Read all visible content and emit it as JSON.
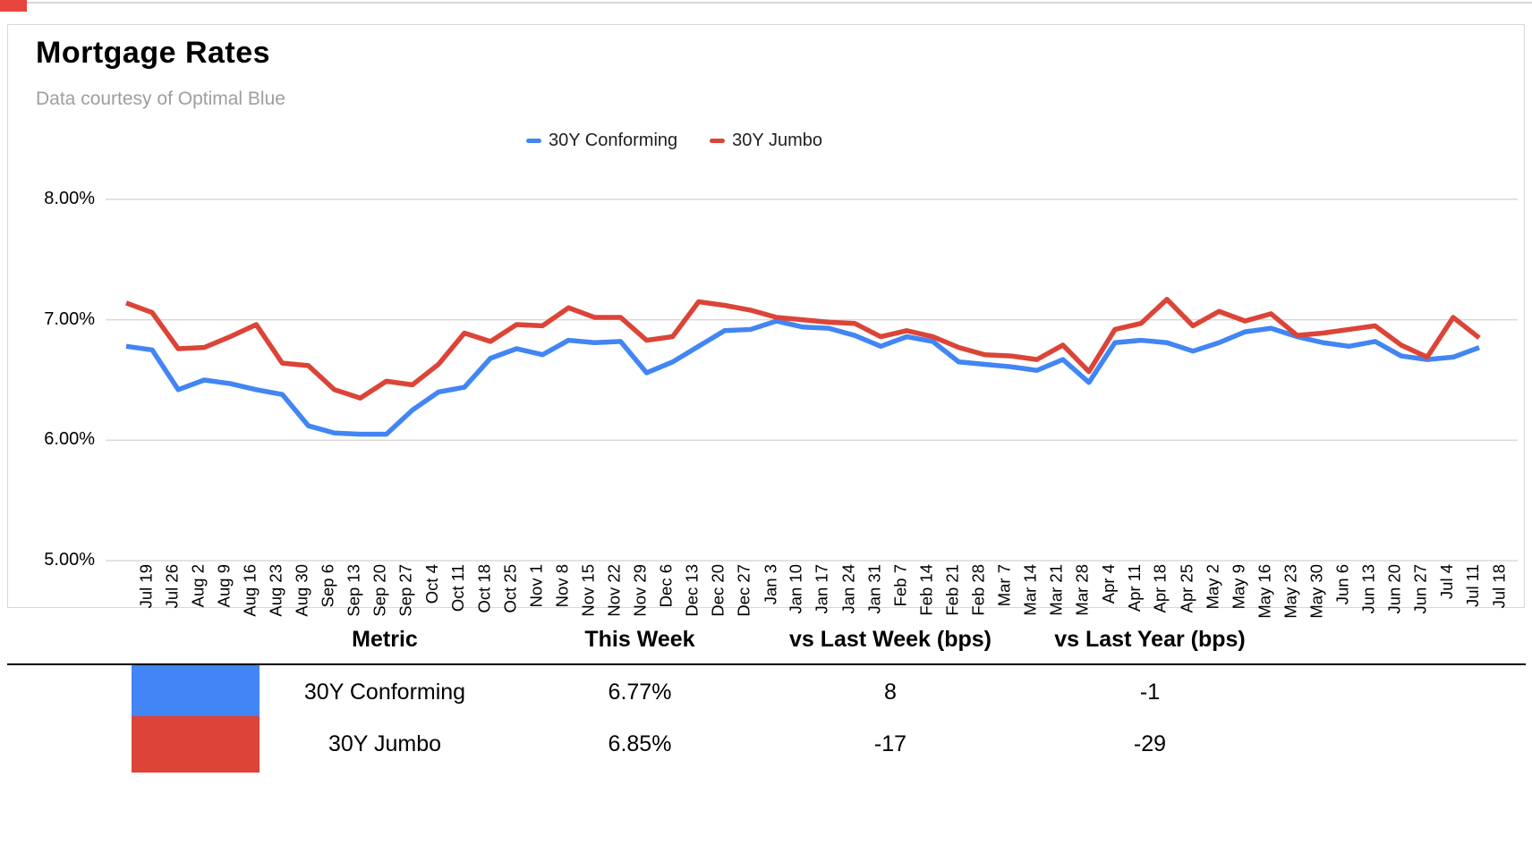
{
  "page": {
    "title": "Mortgage Rates",
    "subtitle": "Data courtesy of Optimal Blue"
  },
  "legend": [
    {
      "label": "30Y Conforming",
      "color": "#4285f4"
    },
    {
      "label": "30Y Jumbo",
      "color": "#db4437"
    }
  ],
  "chart_data": {
    "type": "line",
    "title": "Mortgage Rates",
    "subtitle": "Data courtesy of Optimal Blue",
    "x": [
      "Jul 19",
      "Jul 26",
      "Aug 2",
      "Aug 9",
      "Aug 16",
      "Aug 23",
      "Aug 30",
      "Sep 6",
      "Sep 13",
      "Sep 20",
      "Sep 27",
      "Oct 4",
      "Oct 11",
      "Oct 18",
      "Oct 25",
      "Nov 1",
      "Nov 8",
      "Nov 15",
      "Nov 22",
      "Nov 29",
      "Dec 6",
      "Dec 13",
      "Dec 20",
      "Dec 27",
      "Jan 3",
      "Jan 10",
      "Jan 17",
      "Jan 24",
      "Jan 31",
      "Feb 7",
      "Feb 14",
      "Feb 21",
      "Feb 28",
      "Mar 7",
      "Mar 14",
      "Mar 21",
      "Mar 28",
      "Apr 4",
      "Apr 11",
      "Apr 18",
      "Apr 25",
      "May 2",
      "May 9",
      "May 16",
      "May 23",
      "May 30",
      "Jun 6",
      "Jun 13",
      "Jun 20",
      "Jun 27",
      "Jul 4",
      "Jul 11",
      "Jul 18"
    ],
    "series": [
      {
        "name": "30Y Conforming",
        "color": "#4285f4",
        "values": [
          6.78,
          6.75,
          6.42,
          6.5,
          6.47,
          6.42,
          6.38,
          6.12,
          6.06,
          6.05,
          6.05,
          6.25,
          6.4,
          6.44,
          6.68,
          6.76,
          6.71,
          6.83,
          6.81,
          6.82,
          6.56,
          6.65,
          6.78,
          6.91,
          6.92,
          6.99,
          6.94,
          6.93,
          6.87,
          6.78,
          6.86,
          6.82,
          6.65,
          6.63,
          6.61,
          6.58,
          6.67,
          6.48,
          6.81,
          6.83,
          6.81,
          6.74,
          6.81,
          6.9,
          6.93,
          6.86,
          6.81,
          6.78,
          6.82,
          6.7,
          6.67,
          6.69,
          6.77
        ]
      },
      {
        "name": "30Y Jumbo",
        "color": "#db4437",
        "values": [
          7.14,
          7.06,
          6.76,
          6.77,
          6.86,
          6.96,
          6.64,
          6.62,
          6.42,
          6.35,
          6.49,
          6.46,
          6.63,
          6.89,
          6.82,
          6.96,
          6.95,
          7.1,
          7.02,
          7.02,
          6.83,
          6.86,
          7.15,
          7.12,
          7.08,
          7.02,
          7.0,
          6.98,
          6.97,
          6.86,
          6.91,
          6.86,
          6.77,
          6.71,
          6.7,
          6.67,
          6.79,
          6.57,
          6.92,
          6.97,
          7.17,
          6.95,
          7.07,
          6.99,
          7.05,
          6.87,
          6.89,
          6.92,
          6.95,
          6.79,
          6.69,
          7.02,
          6.85
        ]
      }
    ],
    "ylim": [
      5,
      8
    ],
    "yticks": [
      {
        "value": 8,
        "label": "8.00%"
      },
      {
        "value": 7,
        "label": "7.00%"
      },
      {
        "value": 6,
        "label": "6.00%"
      },
      {
        "value": 5,
        "label": "5.00%"
      }
    ],
    "grid": true,
    "grid_color": "#d9d9d9",
    "legend_position": "top"
  },
  "table": {
    "headers": [
      "Metric",
      "This Week",
      "vs Last Week (bps)",
      "vs Last Year (bps)"
    ],
    "rows": [
      {
        "metric": "30Y Conforming",
        "this_week": "6.77%",
        "vs_last_week": "8",
        "vs_last_year": "-1",
        "swatch_color": "#4285f4"
      },
      {
        "metric": "30Y Jumbo",
        "this_week": "6.85%",
        "vs_last_week": "-17",
        "vs_last_year": "-29",
        "swatch_color": "#db4437"
      }
    ]
  }
}
